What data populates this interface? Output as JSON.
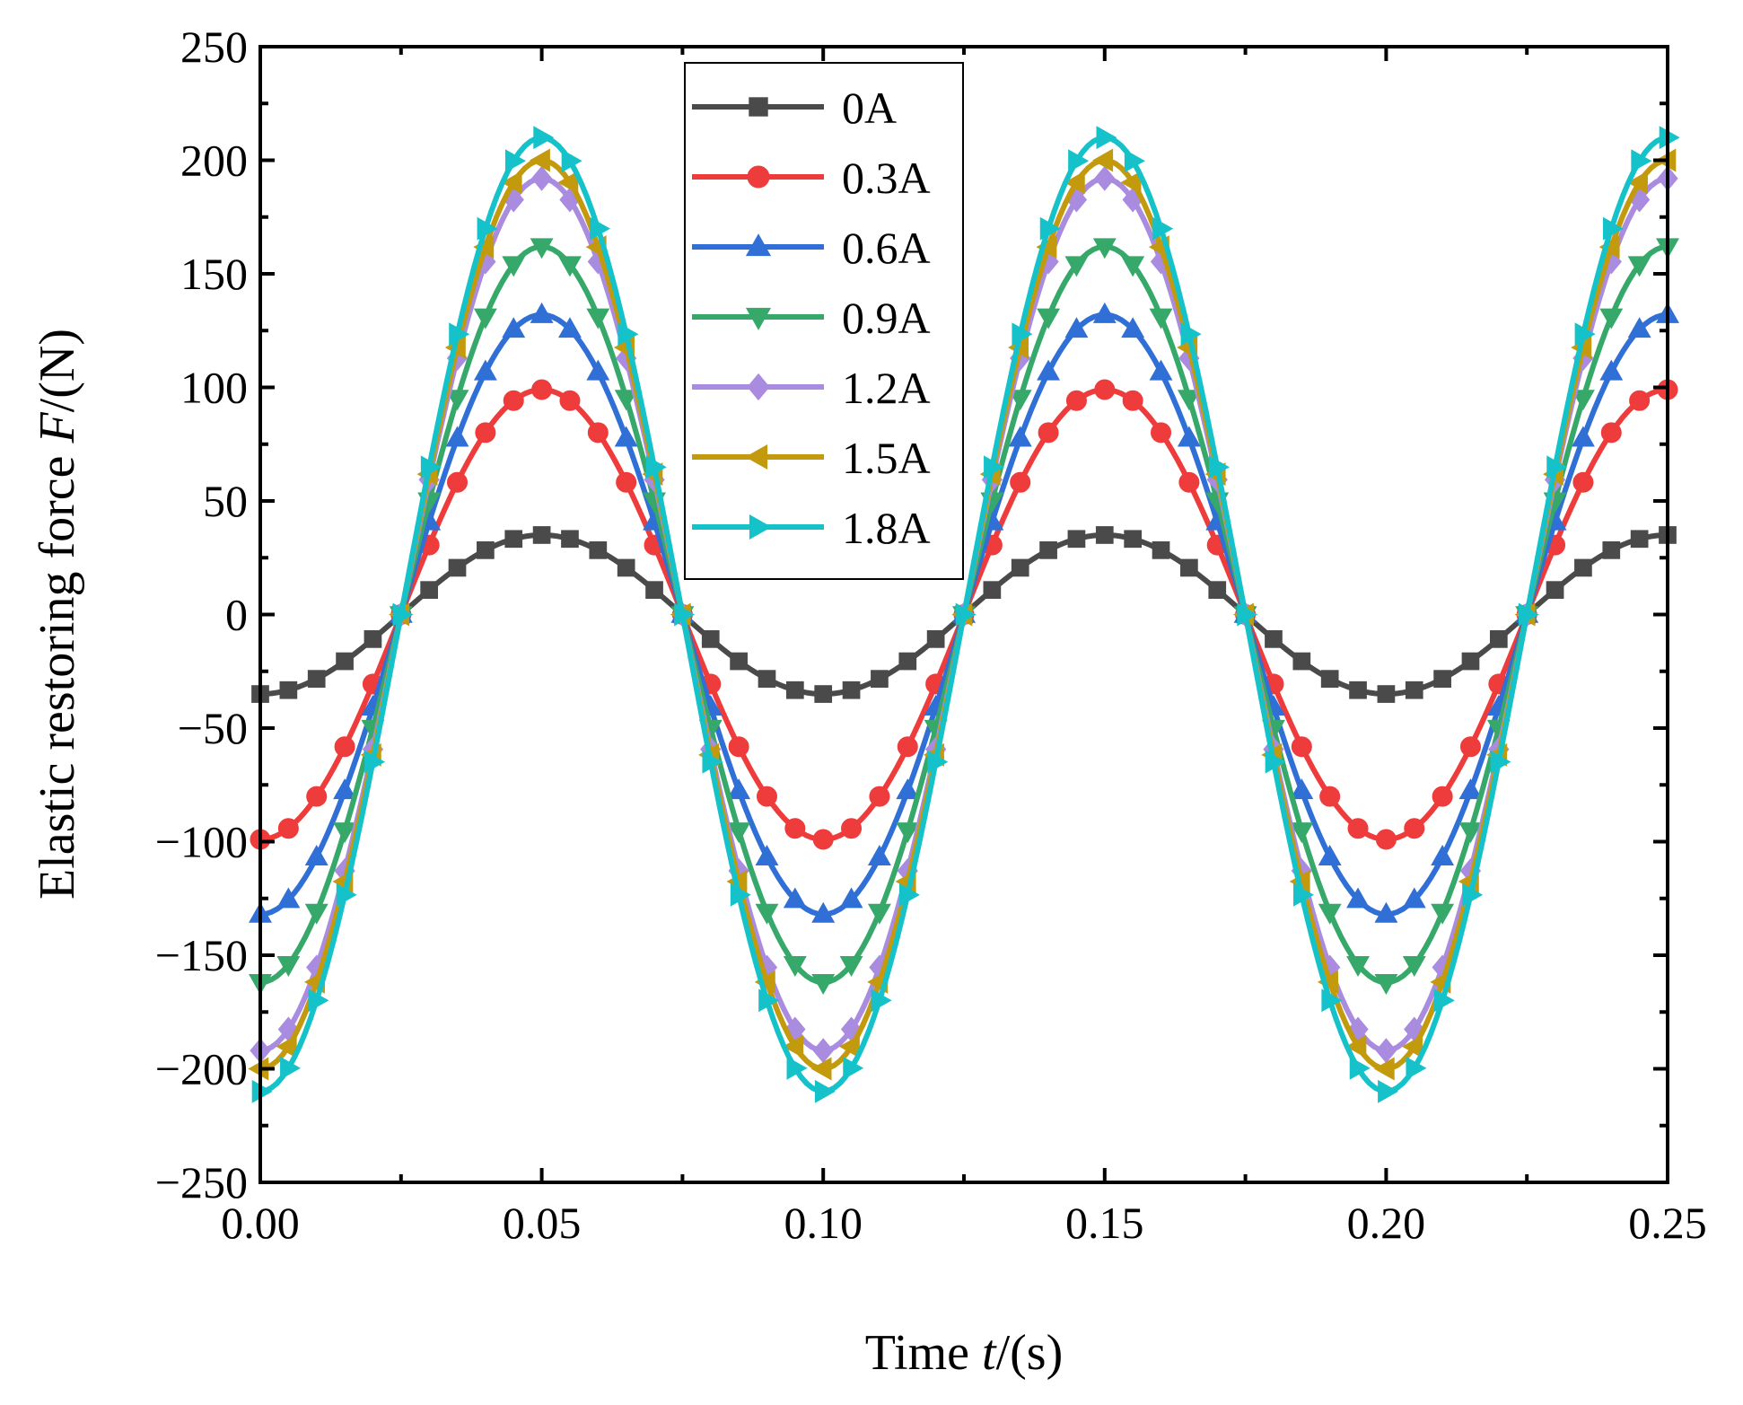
{
  "chart_data": {
    "type": "line",
    "xlabel_prefix": "Time ",
    "xlabel_var": "t",
    "xlabel_suffix": "/(s)",
    "ylabel_prefix": "Elastic restoring force ",
    "ylabel_var": "F",
    "ylabel_suffix": "/(N)",
    "xlim": [
      0,
      0.25
    ],
    "ylim": [
      -250,
      250
    ],
    "xticks": [
      0.0,
      0.05,
      0.1,
      0.15,
      0.2,
      0.25
    ],
    "xtick_labels": [
      "0.00",
      "0.05",
      "0.10",
      "0.15",
      "0.20",
      "0.25"
    ],
    "yticks": [
      -250,
      -200,
      -150,
      -100,
      -50,
      0,
      50,
      100,
      150,
      200,
      250
    ],
    "ytick_labels": [
      "−250",
      "−200",
      "−150",
      "−100",
      "−50",
      "0",
      "50",
      "100",
      "150",
      "200",
      "250"
    ],
    "frequency_hz": 10,
    "phase": "F = -A*cos(2*pi*10*t)",
    "sample_step_s": 0.005,
    "legend_position": "top-center",
    "grid": false,
    "series": [
      {
        "name": "0A",
        "amplitude": 35,
        "color": "#4a4a4a",
        "marker": "square"
      },
      {
        "name": "0.3A",
        "amplitude": 99,
        "color": "#ee3b3b",
        "marker": "circle"
      },
      {
        "name": "0.6A",
        "amplitude": 132,
        "color": "#2f6fd6",
        "marker": "triangle-up"
      },
      {
        "name": "0.9A",
        "amplitude": 162,
        "color": "#36a869",
        "marker": "triangle-down"
      },
      {
        "name": "1.2A",
        "amplitude": 192,
        "color": "#a98be0",
        "marker": "diamond"
      },
      {
        "name": "1.5A",
        "amplitude": 200,
        "color": "#c39a0e",
        "marker": "triangle-left"
      },
      {
        "name": "1.8A",
        "amplitude": 210,
        "color": "#16c2c9",
        "marker": "triangle-right"
      }
    ]
  }
}
